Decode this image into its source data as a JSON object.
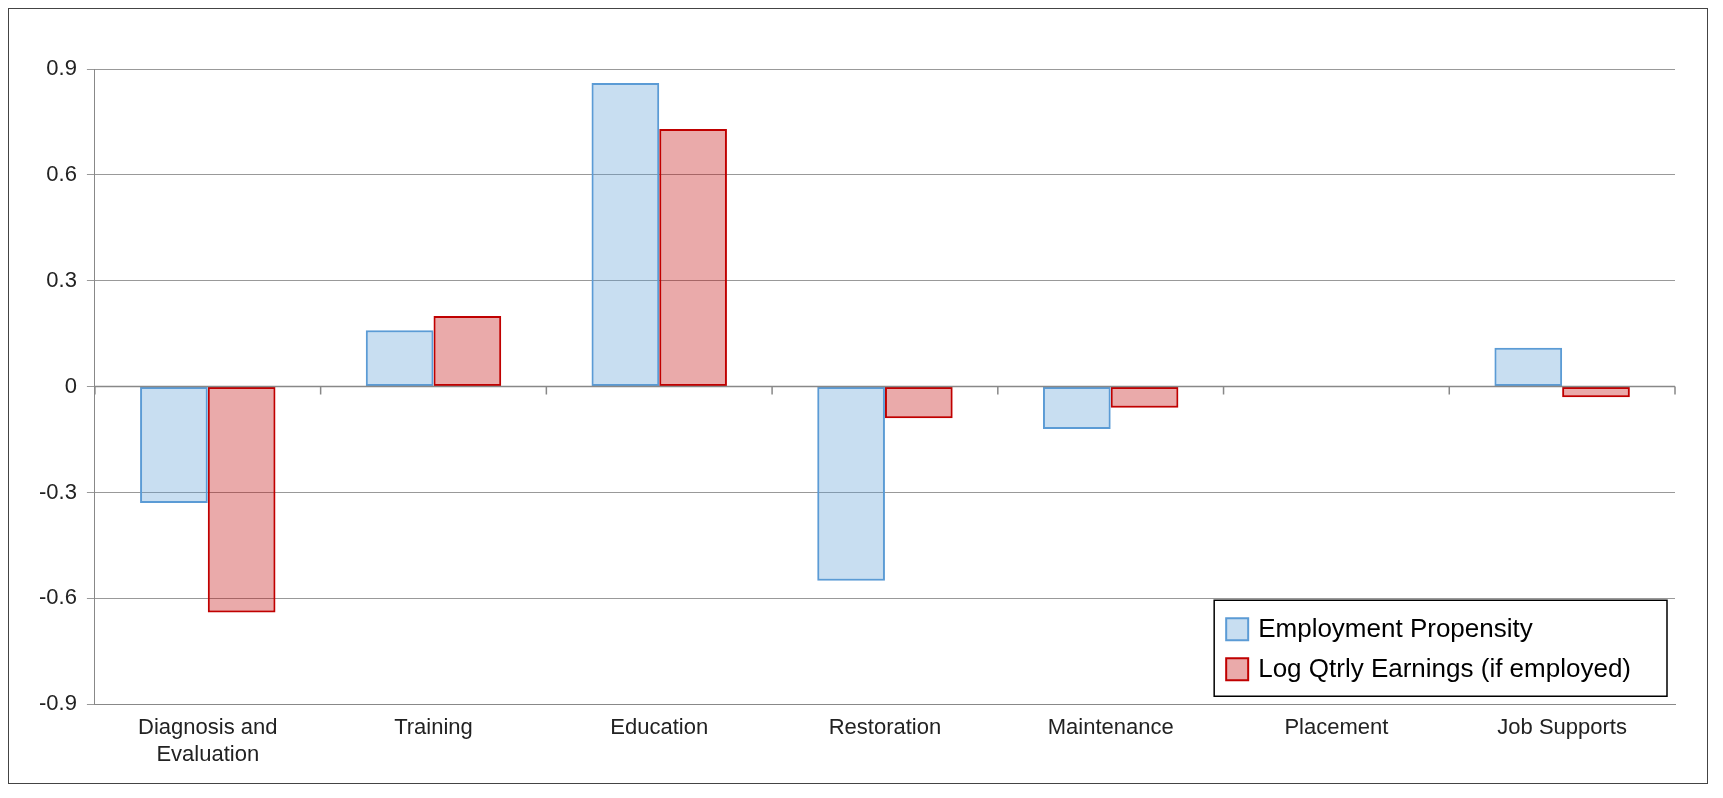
{
  "chart_data": {
    "type": "bar",
    "categories": [
      "Diagnosis and Evaluation",
      "Training",
      "Education",
      "Restoration",
      "Maintenance",
      "Placement",
      "Job Supports"
    ],
    "series": [
      {
        "name": "Employment Propensity",
        "color": "#5b9bd5",
        "values": [
          -0.33,
          0.16,
          0.86,
          -0.55,
          -0.12,
          null,
          0.11
        ]
      },
      {
        "name": "Log Qtrly Earnings (if employed)",
        "color": "#c00000",
        "values": [
          -0.64,
          0.2,
          0.73,
          -0.09,
          -0.06,
          null,
          -0.03
        ]
      }
    ],
    "ylim": [
      -0.9,
      0.9
    ],
    "yticks": [
      {
        "value": -0.9,
        "label": "-0.9"
      },
      {
        "value": -0.6,
        "label": "-0.6"
      },
      {
        "value": -0.3,
        "label": "-0.3"
      },
      {
        "value": 0,
        "label": "0"
      },
      {
        "value": 0.3,
        "label": "0.3"
      },
      {
        "value": 0.6,
        "label": "0.6"
      },
      {
        "value": 0.9,
        "label": "0.9"
      }
    ],
    "grid": "y",
    "legend": "bottom right"
  }
}
